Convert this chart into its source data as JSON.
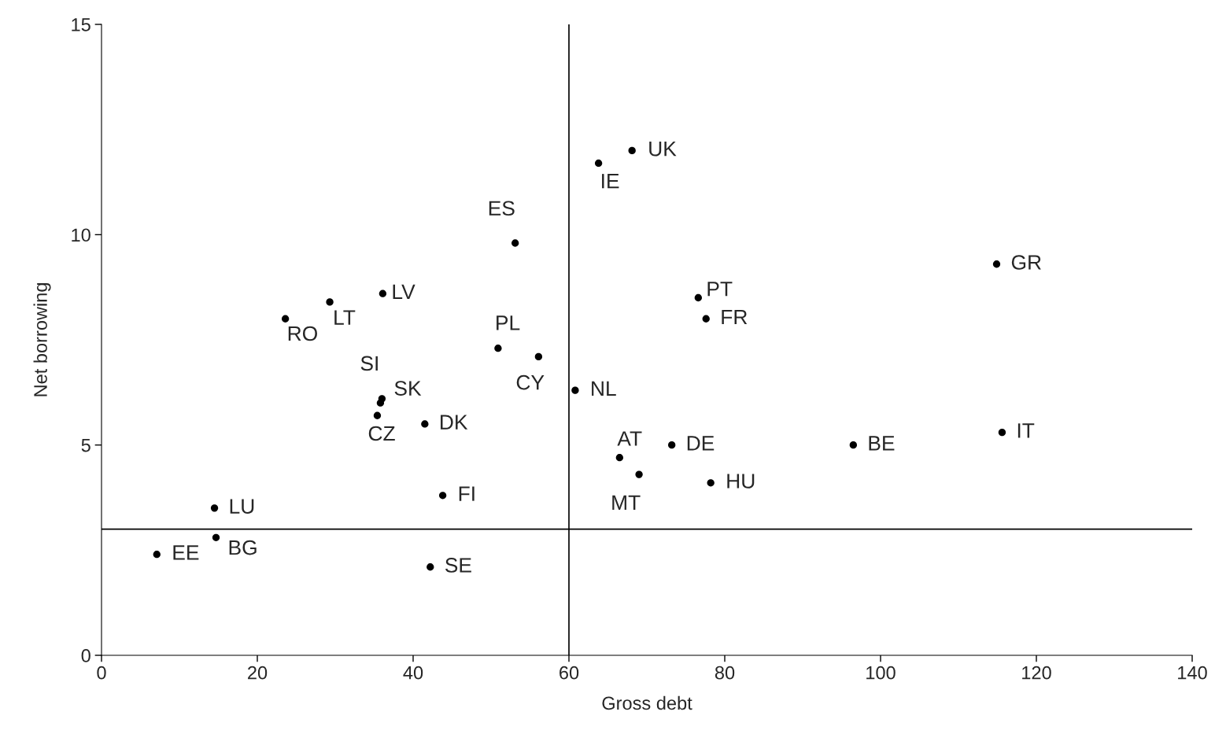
{
  "chart_data": {
    "type": "scatter",
    "xlabel": "Gross debt",
    "ylabel": "Net borrowing",
    "x": [
      68.1,
      63.8,
      53.1,
      114.9,
      36.1,
      29.3,
      23.6,
      76.6,
      77.6,
      50.9,
      56.1,
      60.8,
      36.0,
      35.8,
      35.4,
      41.5,
      66.5,
      69.0,
      73.2,
      78.2,
      96.5,
      115.6,
      14.5,
      14.7,
      7.1,
      42.2,
      43.8
    ],
    "values": [
      12.0,
      11.7,
      9.8,
      9.3,
      8.6,
      8.4,
      8.0,
      8.5,
      8.0,
      7.3,
      7.1,
      6.3,
      6.1,
      6.0,
      5.7,
      5.5,
      4.7,
      4.3,
      5.0,
      4.1,
      5.0,
      5.3,
      3.5,
      2.8,
      2.4,
      2.1,
      3.8
    ],
    "value_labels": [
      "UK",
      "IE",
      "ES",
      "GR",
      "LV",
      "LT",
      "RO",
      "PT",
      "FR",
      "PL",
      "CY",
      "NL",
      "SK",
      "SI",
      "CZ",
      "DK",
      "AT",
      "MT",
      "DE",
      "HU",
      "BE",
      "IT",
      "LU",
      "BG",
      "EE",
      "SE",
      "FI"
    ],
    "color": "#000000",
    "marker": "circle",
    "xlim": [
      0,
      140
    ],
    "xticks": [
      0,
      20,
      40,
      60,
      80,
      100,
      120,
      140
    ],
    "ylim": [
      0,
      15
    ],
    "yticks": [
      0,
      5,
      10,
      15
    ],
    "ref_lines": [
      {
        "axis": "x",
        "value": 60,
        "color": "#000000"
      },
      {
        "axis": "y",
        "value": 3,
        "color": "#000000"
      }
    ],
    "grid": false,
    "legend": false
  }
}
